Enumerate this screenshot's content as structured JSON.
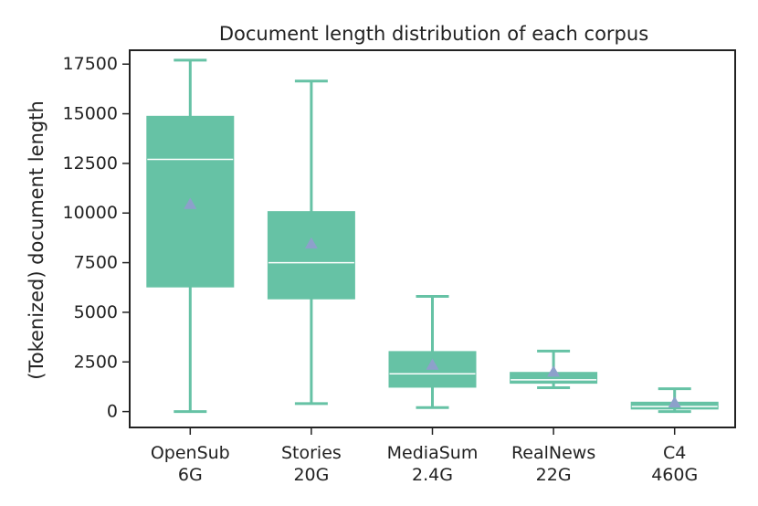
{
  "chart_data": {
    "type": "box",
    "title": "Document length distribution of each corpus",
    "xlabel": "",
    "ylabel": "(Tokenized) document length",
    "ylim": [
      -800,
      18200
    ],
    "yticks": [
      0,
      2500,
      5000,
      7500,
      10000,
      12500,
      15000,
      17500
    ],
    "ytick_labels": [
      "0",
      "2500",
      "5000",
      "7500",
      "10000",
      "12500",
      "15000",
      "17500"
    ],
    "grid": false,
    "legend": "none",
    "box_color": "#66c2a5",
    "median_color": "#ffffff",
    "mean_marker_color": "#8da0cb",
    "categories": [
      {
        "name": "OpenSub",
        "size": "6G",
        "whisker_low": 0,
        "q1": 6300,
        "median": 12700,
        "q3": 14850,
        "whisker_high": 17700,
        "mean": 10450
      },
      {
        "name": "Stories",
        "size": "20G",
        "whisker_low": 400,
        "q1": 5700,
        "median": 7500,
        "q3": 10050,
        "whisker_high": 16650,
        "mean": 8450
      },
      {
        "name": "MediaSum",
        "size": "2.4G",
        "whisker_low": 200,
        "q1": 1250,
        "median": 1900,
        "q3": 3000,
        "whisker_high": 5800,
        "mean": 2350
      },
      {
        "name": "RealNews",
        "size": "22G",
        "whisker_low": 1200,
        "q1": 1450,
        "median": 1600,
        "q3": 1950,
        "whisker_high": 3050,
        "mean": 2000
      },
      {
        "name": "C4",
        "size": "460G",
        "whisker_low": 0,
        "q1": 150,
        "median": 250,
        "q3": 450,
        "whisker_high": 1150,
        "mean": 450
      }
    ]
  }
}
